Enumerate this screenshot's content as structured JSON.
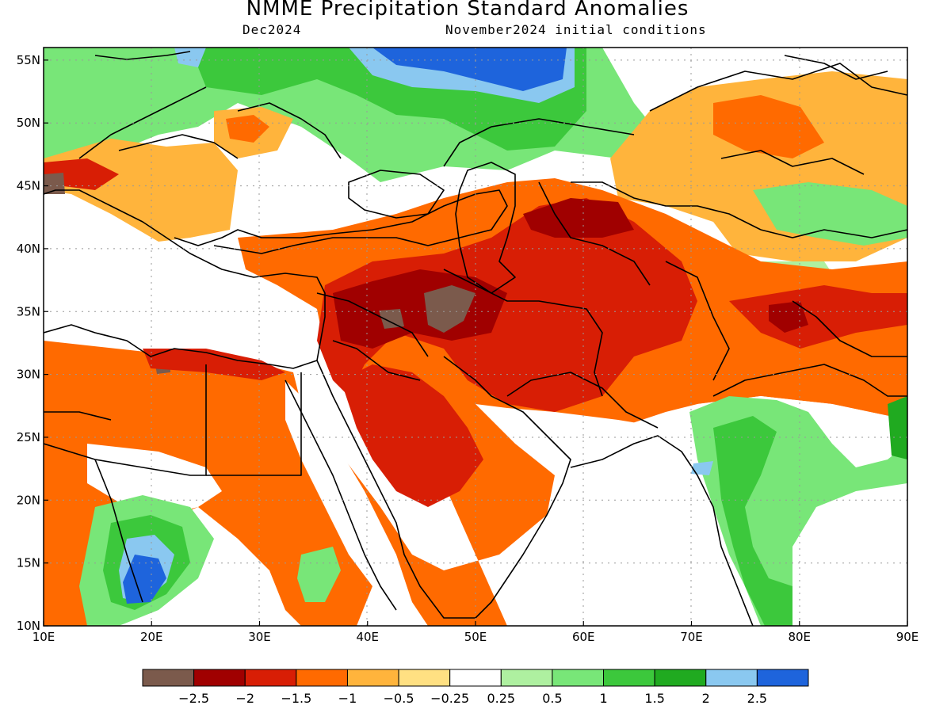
{
  "title": "NMME Precipitation Standard Anomalies",
  "subtitle_left": "Dec2024",
  "subtitle_right": "November2024 initial conditions",
  "map": {
    "lon_range": [
      10,
      90
    ],
    "lat_range": [
      10,
      56
    ],
    "x_ticks": [
      "10E",
      "20E",
      "30E",
      "40E",
      "50E",
      "60E",
      "70E",
      "80E",
      "90E"
    ],
    "y_ticks": [
      "55N",
      "50N",
      "45N",
      "40N",
      "35N",
      "30N",
      "25N",
      "20N",
      "15N",
      "10N"
    ],
    "grid": true,
    "regions": [
      {
        "name": "central-europe-wet",
        "level": 1.0,
        "color": "#4cd34c"
      },
      {
        "name": "russia-very-wet",
        "level": 2.5,
        "color": "#1e64dc"
      },
      {
        "name": "sahel-wet",
        "level": 2.5,
        "color": "#1e64dc"
      },
      {
        "name": "india-wet",
        "level": 1.0,
        "color": "#4cd34c"
      },
      {
        "name": "middle-east-dry",
        "level": -2.0,
        "color": "#d81e05"
      },
      {
        "name": "iraq-extreme-dry",
        "level": -2.5,
        "color": "#7b5a4c"
      },
      {
        "name": "north-africa-dry",
        "level": -1.0,
        "color": "#f5a11e"
      }
    ]
  },
  "colorbar": {
    "colors": [
      "#7b5a4c",
      "#a00000",
      "#d81e05",
      "#ff6a00",
      "#ffb43c",
      "#ffe082",
      "#ffffff",
      "#aef0a0",
      "#78e678",
      "#3cc83c",
      "#20aa20",
      "#8ac8f0",
      "#1e64dc"
    ],
    "labels": [
      "−2.5",
      "−2",
      "−1.5",
      "−1",
      "−0.5",
      "−0.25",
      "0.25",
      "0.5",
      "1",
      "1.5",
      "2",
      "2.5"
    ]
  }
}
